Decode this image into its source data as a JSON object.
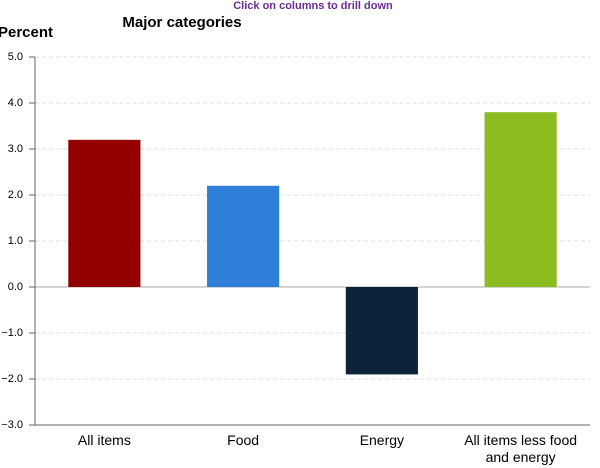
{
  "chart_data": {
    "type": "bar",
    "subtitle": "Click on columns to drill down",
    "title": "Major categories",
    "y_label": "Percent",
    "categories": [
      "All items",
      "Food",
      "Energy",
      "All items less food and energy"
    ],
    "values": [
      3.2,
      2.2,
      -1.9,
      3.8
    ],
    "colors": [
      "#930000",
      "#2f7ed8",
      "#0d233a",
      "#8bbc21"
    ],
    "ylim": [
      -3,
      5
    ],
    "yticks": [
      {
        "value": -3,
        "label": "−3.0"
      },
      {
        "value": -2,
        "label": "−2.0"
      },
      {
        "value": -1,
        "label": "−1.0"
      },
      {
        "value": 0,
        "label": "0.0"
      },
      {
        "value": 1,
        "label": "1.0"
      },
      {
        "value": 2,
        "label": "2.0"
      },
      {
        "value": 3,
        "label": "3.0"
      },
      {
        "value": 4,
        "label": "4.0"
      },
      {
        "value": 5,
        "label": "5.0"
      }
    ],
    "grid": true
  }
}
